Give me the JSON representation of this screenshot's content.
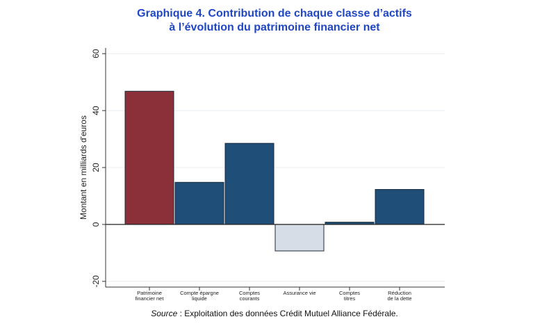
{
  "figure": {
    "title_line1": "Graphique 4. Contribution de chaque classe d’actifs",
    "title_line2": "à l’évolution du patrimoine financier net",
    "source_label": "Source",
    "source_text": " : Exploitation des données Crédit Mutuel Alliance Fédérale."
  },
  "chart_data": {
    "type": "bar",
    "title": "Graphique 4. Contribution de chaque classe d’actifs à l’évolution du patrimoine financier net",
    "xlabel": "",
    "ylabel": "Montant en milliards d'euros",
    "ylim": [
      -22,
      62
    ],
    "yticks": [
      60,
      40,
      20,
      0,
      -20
    ],
    "grid": true,
    "legend": "none",
    "categories": [
      [
        "Patrimoine",
        "financier net"
      ],
      [
        "Compte épargne",
        "liquide"
      ],
      [
        "Comptes",
        "courants"
      ],
      [
        "Assurance vie"
      ],
      [
        "Comptes",
        "titres"
      ],
      [
        "Réduction",
        "de la dette"
      ]
    ],
    "values": [
      46.8,
      14.8,
      28.5,
      -9.3,
      0.8,
      12.3
    ],
    "colors": [
      "#8b2f39",
      "#1f4e79",
      "#1f4e79",
      "#d6dde6",
      "#1f4e79",
      "#1f4e79"
    ]
  }
}
